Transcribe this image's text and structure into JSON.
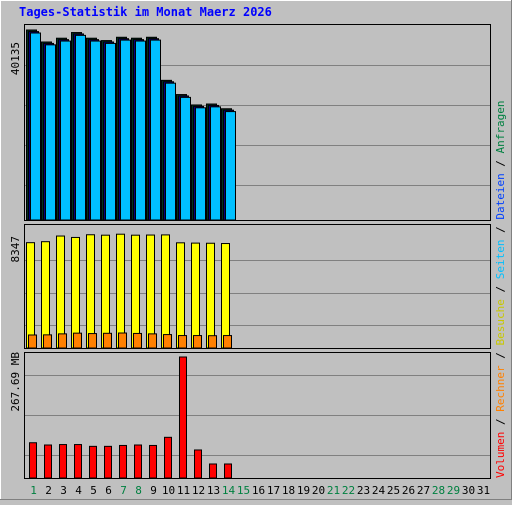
{
  "chart_data": [
    {
      "type": "bar",
      "title": "Tages-Statistik im Monat Maerz 2026",
      "ylabel": "40135",
      "categories": [
        "1",
        "2",
        "3",
        "4",
        "5",
        "6",
        "7",
        "8",
        "9",
        "10",
        "11",
        "12",
        "13",
        "14",
        "15",
        "16",
        "17",
        "18",
        "19",
        "20",
        "21",
        "22",
        "23",
        "24",
        "25",
        "26",
        "27",
        "28",
        "29",
        "30",
        "31"
      ],
      "ylim": [
        0,
        40135
      ],
      "series": [
        {
          "name": "Anfragen",
          "color": "#008040",
          "values": [
            40135,
            37600,
            38400,
            39600,
            38400,
            37900,
            38600,
            38400,
            38600,
            29500,
            26500,
            24300,
            24500,
            23500,
            null,
            null,
            null,
            null,
            null,
            null,
            null,
            null,
            null,
            null,
            null,
            null,
            null,
            null,
            null,
            null,
            null
          ]
        },
        {
          "name": "Dateien",
          "color": "#0040ff",
          "values": [
            39800,
            37300,
            38100,
            39300,
            38100,
            37600,
            38300,
            38100,
            38300,
            29200,
            26200,
            24000,
            24200,
            23200,
            null,
            null,
            null,
            null,
            null,
            null,
            null,
            null,
            null,
            null,
            null,
            null,
            null,
            null,
            null,
            null,
            null
          ]
        },
        {
          "name": "Seiten",
          "color": "#00c0ff",
          "values": [
            39500,
            37000,
            37800,
            39000,
            37800,
            37300,
            38000,
            37800,
            38000,
            28900,
            25900,
            23700,
            23900,
            22900,
            null,
            null,
            null,
            null,
            null,
            null,
            null,
            null,
            null,
            null,
            null,
            null,
            null,
            null,
            null,
            null,
            null
          ]
        }
      ]
    },
    {
      "type": "bar",
      "ylabel": "8347",
      "ylim": [
        0,
        8347
      ],
      "series": [
        {
          "name": "Besuche",
          "color": "#ffff00",
          "values": [
            7450,
            7520,
            7920,
            7820,
            8010,
            7980,
            8050,
            7980,
            7990,
            8000,
            7440,
            7420,
            7410,
            7390,
            null,
            null,
            null,
            null,
            null,
            null,
            null,
            null,
            null,
            null,
            null,
            null,
            null,
            null,
            null,
            null,
            null
          ]
        },
        {
          "name": "Rechner",
          "color": "#ff8000",
          "values": [
            920,
            930,
            1000,
            1050,
            1020,
            1040,
            1060,
            1030,
            1000,
            950,
            880,
            880,
            870,
            880,
            null,
            null,
            null,
            null,
            null,
            null,
            null,
            null,
            null,
            null,
            null,
            null,
            null,
            null,
            null,
            null,
            null
          ]
        }
      ]
    },
    {
      "type": "bar",
      "ylabel": "267.69 MB",
      "ylim": [
        0,
        267.69
      ],
      "series": [
        {
          "name": "Volumen",
          "color": "#ff0000",
          "values": [
            78,
            73,
            74,
            74,
            70,
            70,
            72,
            73,
            72,
            90,
            267.69,
            62,
            31,
            31,
            null,
            null,
            null,
            null,
            null,
            null,
            null,
            null,
            null,
            null,
            null,
            null,
            null,
            null,
            null,
            null,
            null
          ]
        }
      ]
    }
  ],
  "x_label_colors": {
    "weekday": "#000000",
    "weekend": "#008040"
  },
  "weekend_days": [
    "1",
    "7",
    "8",
    "14",
    "15",
    "21",
    "22",
    "28",
    "29"
  ],
  "legend": {
    "entries": [
      {
        "label": "Volumen",
        "color": "#ff0000"
      },
      {
        "label": "Rechner",
        "color": "#ff8000"
      },
      {
        "label": "Besuche",
        "color": "#c8c800"
      },
      {
        "label": "Seiten",
        "color": "#00c0ff"
      },
      {
        "label": "Dateien",
        "color": "#0040ff"
      },
      {
        "label": "Anfragen",
        "color": "#008040"
      }
    ],
    "separator": "/"
  },
  "colors": {
    "background": "#c0c0c0",
    "title": "#0000ff",
    "grid": "#808080"
  }
}
